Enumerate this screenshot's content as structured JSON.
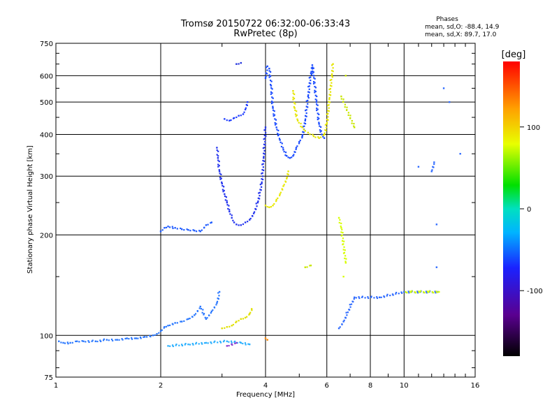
{
  "chart_data": {
    "type": "scatter",
    "title": "Tromsø 20150722 06:32:00-06:33:43",
    "subtitle": "RwPretec (8p)",
    "xlabel": "Frequency [MHz]",
    "ylabel": "Stationary phase Virtual Height [km]",
    "x_scale": "log",
    "y_scale": "log",
    "xlim": [
      1,
      16
    ],
    "ylim": [
      75,
      750
    ],
    "x_ticks": [
      1,
      2,
      4,
      6,
      8,
      10,
      16
    ],
    "x_tick_labels": [
      "1",
      "2",
      "4",
      "6",
      "8",
      "10",
      "16"
    ],
    "x_minor_ticks": [
      3,
      5,
      7,
      9,
      11,
      12,
      13,
      14,
      15
    ],
    "y_ticks": [
      75,
      100,
      200,
      300,
      400,
      500,
      600,
      750
    ],
    "y_tick_labels": [
      "75",
      "100",
      "200",
      "300",
      "400",
      "500",
      "600",
      "750"
    ],
    "y_minor_ticks": [
      80,
      90,
      150,
      250,
      350,
      450,
      550,
      650,
      700
    ],
    "grid": true,
    "stats": {
      "heading": "Phases",
      "o_line": "mean, sd,O: -88.4, 14.9",
      "x_line": "mean, sd,X:  89.7, 17.0"
    },
    "colorbar": {
      "label": "[deg]",
      "range": [
        -180,
        180
      ],
      "ticks": [
        100,
        0,
        -100
      ],
      "tick_labels": [
        "100",
        "0",
        "-100"
      ],
      "colormap": "rainbow: black-purple-blue-cyan-green-yellow-red"
    },
    "series": [
      {
        "phase": -100,
        "color": "#2a78ff",
        "points": [
          [
            1.02,
            96
          ],
          [
            1.05,
            95
          ],
          [
            1.1,
            95
          ],
          [
            1.15,
            96
          ],
          [
            1.2,
            96
          ],
          [
            1.3,
            96
          ],
          [
            1.4,
            97
          ],
          [
            1.5,
            97
          ],
          [
            1.6,
            98
          ],
          [
            1.7,
            98
          ],
          [
            1.8,
            99
          ],
          [
            1.9,
            100
          ],
          [
            1.95,
            101
          ],
          [
            2.0,
            103
          ],
          [
            2.05,
            106
          ],
          [
            2.1,
            107
          ],
          [
            2.2,
            109
          ],
          [
            2.3,
            110
          ],
          [
            2.4,
            112
          ],
          [
            2.5,
            115
          ],
          [
            2.6,
            122
          ],
          [
            2.7,
            112
          ],
          [
            2.8,
            118
          ],
          [
            2.9,
            125
          ],
          [
            2.95,
            135
          ]
        ]
      },
      {
        "phase": -110,
        "color": "#1e5bff",
        "points": [
          [
            2.0,
            205
          ],
          [
            2.05,
            210
          ],
          [
            2.1,
            212
          ],
          [
            2.2,
            210
          ],
          [
            2.3,
            208
          ],
          [
            2.4,
            207
          ],
          [
            2.5,
            206
          ],
          [
            2.6,
            205
          ],
          [
            2.7,
            214
          ],
          [
            2.8,
            218
          ]
        ]
      },
      {
        "phase": -120,
        "color": "#2233ee",
        "points": [
          [
            2.9,
            365
          ],
          [
            2.92,
            340
          ],
          [
            2.95,
            310
          ],
          [
            3.0,
            285
          ],
          [
            3.05,
            265
          ],
          [
            3.1,
            250
          ],
          [
            3.15,
            235
          ],
          [
            3.2,
            225
          ],
          [
            3.25,
            218
          ],
          [
            3.3,
            215
          ],
          [
            3.4,
            214
          ],
          [
            3.5,
            218
          ],
          [
            3.6,
            222
          ],
          [
            3.7,
            232
          ],
          [
            3.8,
            250
          ],
          [
            3.9,
            285
          ],
          [
            3.95,
            340
          ],
          [
            4.0,
            420
          ]
        ]
      },
      {
        "phase": -115,
        "color": "#1f3dff",
        "points": [
          [
            3.05,
            445
          ],
          [
            3.15,
            440
          ],
          [
            3.25,
            448
          ],
          [
            3.35,
            455
          ],
          [
            3.45,
            460
          ],
          [
            3.5,
            475
          ],
          [
            3.55,
            500
          ]
        ]
      },
      {
        "phase": -125,
        "color": "#2233dd",
        "points": [
          [
            3.3,
            650
          ],
          [
            3.4,
            655
          ]
        ]
      },
      {
        "phase": -105,
        "color": "#1a4bff",
        "points": [
          [
            4.0,
            590
          ],
          [
            4.05,
            640
          ],
          [
            4.1,
            630
          ],
          [
            4.15,
            560
          ],
          [
            4.2,
            480
          ],
          [
            4.3,
            420
          ],
          [
            4.4,
            385
          ],
          [
            4.5,
            360
          ],
          [
            4.6,
            345
          ],
          [
            4.7,
            340
          ],
          [
            4.8,
            345
          ],
          [
            4.9,
            365
          ],
          [
            5.0,
            380
          ],
          [
            5.1,
            395
          ],
          [
            5.2,
            440
          ],
          [
            5.3,
            520
          ],
          [
            5.4,
            610
          ],
          [
            5.45,
            645
          ],
          [
            5.5,
            600
          ],
          [
            5.6,
            500
          ],
          [
            5.7,
            430
          ],
          [
            5.8,
            400
          ],
          [
            5.9,
            390
          ]
        ]
      },
      {
        "phase": 95,
        "color": "#e8e800",
        "points": [
          [
            4.0,
            245
          ],
          [
            4.1,
            242
          ],
          [
            4.2,
            245
          ],
          [
            4.3,
            255
          ],
          [
            4.4,
            265
          ],
          [
            4.5,
            280
          ],
          [
            4.6,
            295
          ],
          [
            4.65,
            310
          ]
        ]
      },
      {
        "phase": 90,
        "color": "#e5e500",
        "points": [
          [
            4.8,
            540
          ],
          [
            4.85,
            480
          ],
          [
            4.95,
            440
          ],
          [
            5.1,
            420
          ],
          [
            5.2,
            410
          ],
          [
            5.3,
            405
          ],
          [
            5.5,
            395
          ],
          [
            5.7,
            390
          ],
          [
            5.9,
            400
          ],
          [
            6.0,
            430
          ],
          [
            6.1,
            510
          ],
          [
            6.2,
            600
          ],
          [
            6.25,
            650
          ]
        ]
      },
      {
        "phase": 95,
        "color": "#e0e000",
        "points": [
          [
            3.0,
            105
          ],
          [
            3.1,
            106
          ],
          [
            3.2,
            107
          ],
          [
            3.3,
            110
          ],
          [
            3.4,
            112
          ],
          [
            3.5,
            113
          ],
          [
            3.6,
            116
          ],
          [
            3.65,
            120
          ]
        ]
      },
      {
        "phase": 150,
        "color": "#ff8800",
        "points": [
          [
            4.0,
            98
          ],
          [
            4.05,
            97
          ]
        ]
      },
      {
        "phase": -95,
        "color": "#2ab0ff",
        "points": [
          [
            2.1,
            93
          ],
          [
            2.4,
            94
          ],
          [
            2.7,
            95
          ],
          [
            3.1,
            96
          ],
          [
            3.4,
            95
          ],
          [
            3.6,
            94
          ]
        ]
      },
      {
        "phase": -140,
        "color": "#8a3ad0",
        "points": [
          [
            3.1,
            93
          ],
          [
            3.3,
            95
          ]
        ]
      },
      {
        "phase": 60,
        "color": "#c8e600",
        "points": [
          [
            5.2,
            160
          ],
          [
            5.4,
            162
          ],
          [
            6.8,
            600
          ],
          [
            7.2,
            420
          ],
          [
            6.6,
            520
          ]
        ]
      },
      {
        "phase": -110,
        "color": "#2f6bff",
        "points": [
          [
            6.5,
            105
          ],
          [
            6.7,
            110
          ],
          [
            7.2,
            130
          ],
          [
            8.5,
            130
          ],
          [
            10.0,
            135
          ],
          [
            12.5,
            135
          ],
          [
            12.0,
            310
          ],
          [
            12.2,
            330
          ],
          [
            13.5,
            500
          ],
          [
            14.5,
            350
          ],
          [
            13.0,
            550
          ],
          [
            11.0,
            320
          ],
          [
            12.4,
            215
          ],
          [
            12.4,
            160
          ]
        ]
      },
      {
        "phase": 80,
        "color": "#d8ff00",
        "points": [
          [
            6.8,
            165
          ],
          [
            6.6,
            210
          ],
          [
            6.5,
            225
          ],
          [
            6.7,
            150
          ],
          [
            12.6,
            135
          ],
          [
            10.1,
            135
          ]
        ]
      }
    ]
  }
}
